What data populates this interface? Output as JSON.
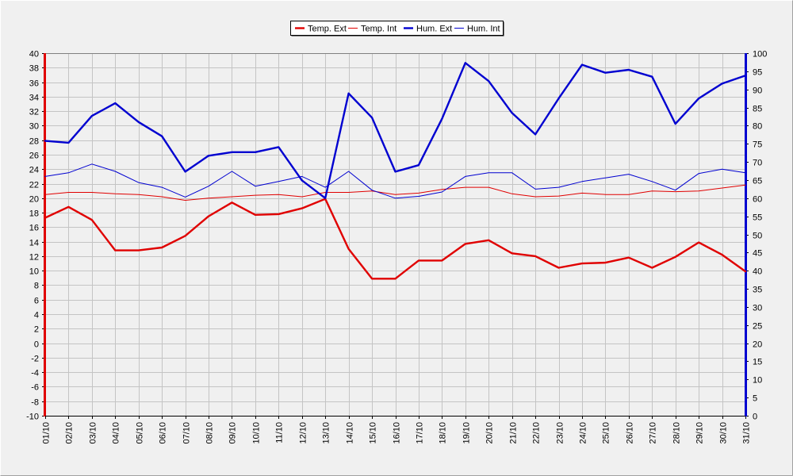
{
  "chart_data": {
    "type": "line",
    "categories": [
      "01/10",
      "02/10",
      "03/10",
      "04/10",
      "05/10",
      "06/10",
      "07/10",
      "08/10",
      "09/10",
      "10/10",
      "11/10",
      "12/10",
      "13/10",
      "14/10",
      "15/10",
      "16/10",
      "17/10",
      "18/10",
      "19/10",
      "20/10",
      "21/10",
      "22/10",
      "23/10",
      "24/10",
      "25/10",
      "26/10",
      "27/10",
      "28/10",
      "29/10",
      "30/10",
      "31/10"
    ],
    "y_left": {
      "min": -10,
      "max": 40,
      "step": 2
    },
    "y_right": {
      "min": 0,
      "max": 100,
      "step": 5
    },
    "grid": true,
    "legend_position": "top-center",
    "series": [
      {
        "name": "Temp. Ext",
        "axis": "left",
        "color": "#e00000",
        "emphasis": "bold",
        "values": [
          17.3,
          18.8,
          17.0,
          12.8,
          12.8,
          13.2,
          14.8,
          17.5,
          19.4,
          17.7,
          17.8,
          18.6,
          19.9,
          13.0,
          8.9,
          8.9,
          11.4,
          11.4,
          13.7,
          14.2,
          12.4,
          12.0,
          10.4,
          11.0,
          11.1,
          11.8,
          10.4,
          11.9,
          13.9,
          12.2,
          9.9
        ]
      },
      {
        "name": "Temp. Int",
        "axis": "left",
        "color": "#e00000",
        "emphasis": "thin",
        "values": [
          20.5,
          20.8,
          20.8,
          20.6,
          20.5,
          20.2,
          19.7,
          20.0,
          20.2,
          20.4,
          20.5,
          20.2,
          20.8,
          20.8,
          21.0,
          20.5,
          20.7,
          21.2,
          21.5,
          21.5,
          20.6,
          20.2,
          20.3,
          20.7,
          20.5,
          20.5,
          21.0,
          20.9,
          21.0,
          21.4,
          21.8
        ]
      },
      {
        "name": "Hum. Ext",
        "axis": "right",
        "color": "#0000d0",
        "emphasis": "bold",
        "values": [
          75.8,
          75.3,
          82.7,
          86.2,
          81.0,
          77.1,
          67.3,
          71.7,
          72.7,
          72.7,
          74.1,
          64.9,
          60.0,
          88.9,
          82.2,
          67.3,
          69.1,
          81.9,
          97.3,
          92.3,
          83.5,
          77.6,
          87.5,
          96.8,
          94.6,
          95.4,
          93.5,
          80.5,
          87.5,
          91.6,
          93.8
        ]
      },
      {
        "name": "Hum. Int",
        "axis": "right",
        "color": "#0000d0",
        "emphasis": "thin",
        "values": [
          66.0,
          67.0,
          69.4,
          67.4,
          64.3,
          63.0,
          60.3,
          63.3,
          67.4,
          63.3,
          64.6,
          66.0,
          63.0,
          67.4,
          62.2,
          60.0,
          60.5,
          61.7,
          66.0,
          67.0,
          67.0,
          62.5,
          63.0,
          64.6,
          65.6,
          66.6,
          64.6,
          62.2,
          66.8,
          68.0,
          67.0
        ]
      }
    ]
  }
}
